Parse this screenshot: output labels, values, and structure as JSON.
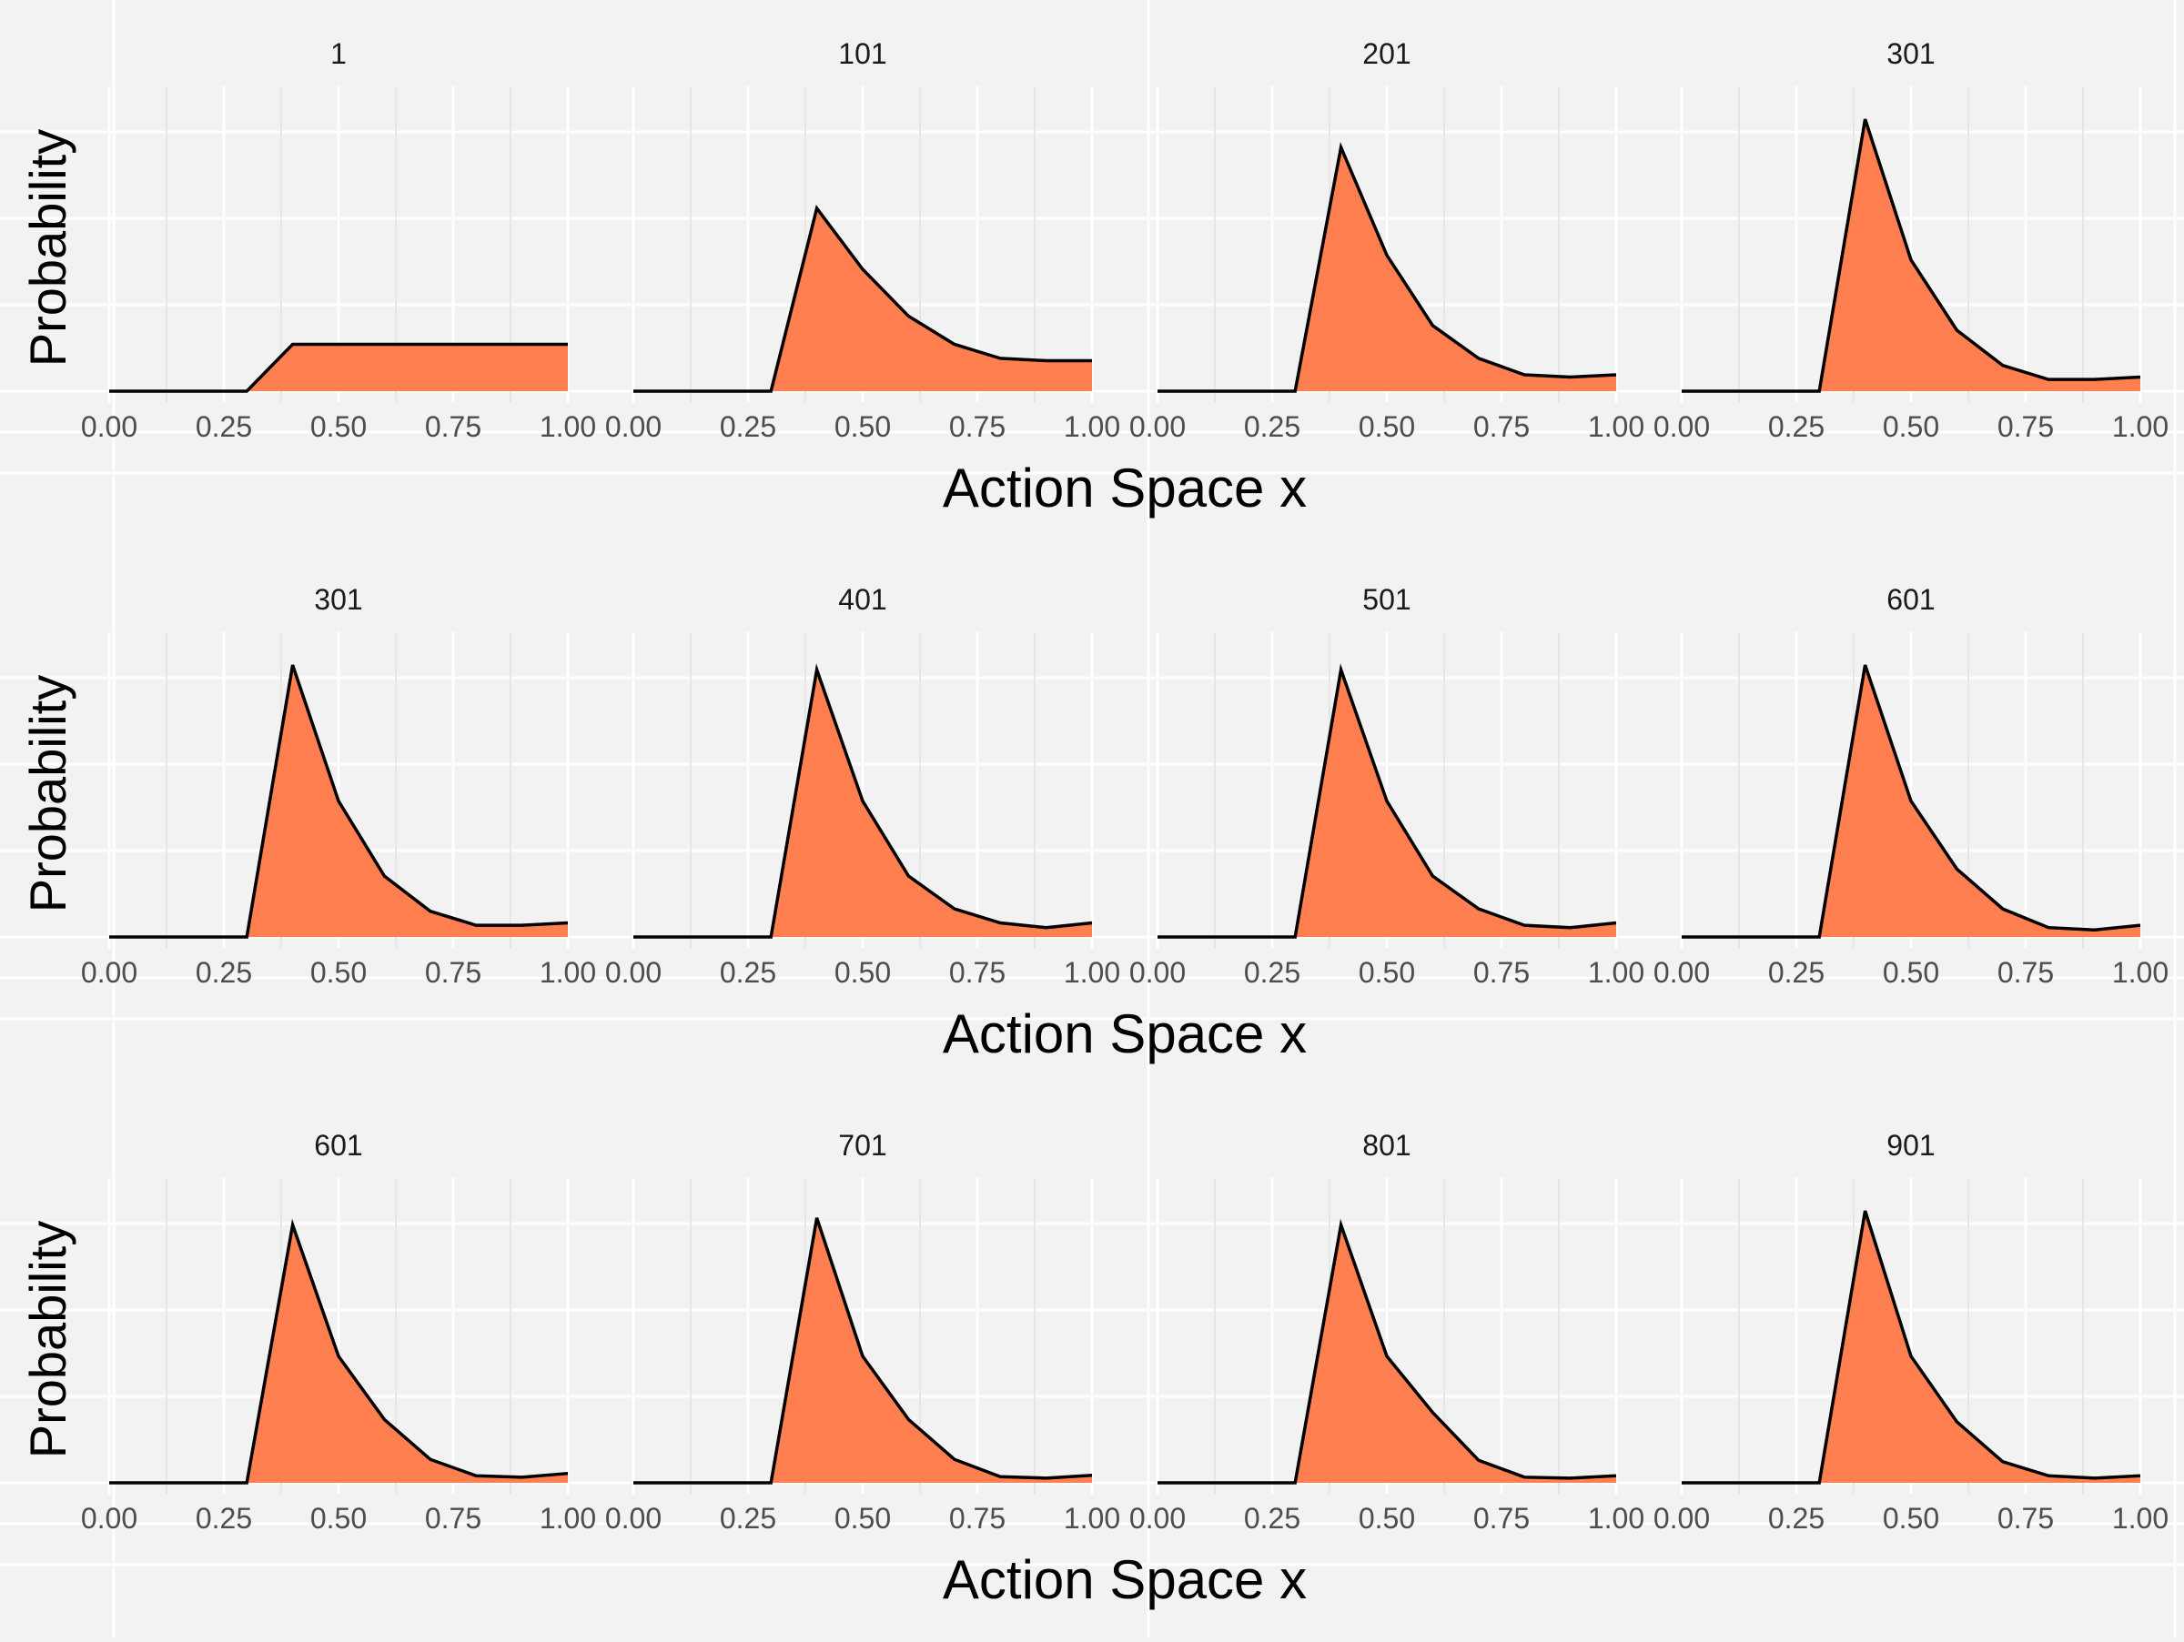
{
  "colors": {
    "background": "#f2f2f2",
    "fill": "#ff7f50",
    "line": "#000000",
    "grid_major": "#ffffff",
    "grid_minor": "#e6e6e6",
    "tick_text": "#4d4d4d",
    "title_text": "#1a1a1a"
  },
  "chart_data": {
    "type": "area",
    "xlabel": "Action Space x",
    "ylabel": "Probability",
    "xlim": [
      0,
      1
    ],
    "ylim": [
      0,
      0.65
    ],
    "x_ticks": [
      "0.00",
      "0.25",
      "0.50",
      "0.75",
      "1.00"
    ],
    "grid": true,
    "x": [
      0,
      0.1,
      0.2,
      0.3,
      0.4,
      0.5,
      0.6,
      0.7,
      0.8,
      0.9,
      1.0
    ],
    "rows": [
      {
        "panels": [
          {
            "title": "1",
            "values": [
              0,
              0,
              0,
              0,
              0.1,
              0.1,
              0.1,
              0.1,
              0.1,
              0.1,
              0.1
            ]
          },
          {
            "title": "101",
            "values": [
              0,
              0,
              0,
              0,
              0.39,
              0.26,
              0.16,
              0.1,
              0.07,
              0.065,
              0.065
            ]
          },
          {
            "title": "201",
            "values": [
              0,
              0,
              0,
              0,
              0.52,
              0.29,
              0.14,
              0.07,
              0.035,
              0.03,
              0.035
            ]
          },
          {
            "title": "301",
            "values": [
              0,
              0,
              0,
              0,
              0.58,
              0.28,
              0.13,
              0.055,
              0.025,
              0.025,
              0.03
            ]
          }
        ]
      },
      {
        "panels": [
          {
            "title": "301",
            "values": [
              0,
              0,
              0,
              0,
              0.58,
              0.29,
              0.13,
              0.055,
              0.025,
              0.025,
              0.03
            ]
          },
          {
            "title": "401",
            "values": [
              0,
              0,
              0,
              0,
              0.57,
              0.29,
              0.13,
              0.06,
              0.03,
              0.02,
              0.03
            ]
          },
          {
            "title": "501",
            "values": [
              0,
              0,
              0,
              0,
              0.57,
              0.29,
              0.13,
              0.06,
              0.025,
              0.02,
              0.03
            ]
          },
          {
            "title": "601",
            "values": [
              0,
              0,
              0,
              0,
              0.58,
              0.29,
              0.145,
              0.06,
              0.02,
              0.015,
              0.025
            ]
          }
        ]
      },
      {
        "panels": [
          {
            "title": "601",
            "values": [
              0,
              0,
              0,
              0,
              0.55,
              0.27,
              0.135,
              0.05,
              0.015,
              0.012,
              0.02
            ]
          },
          {
            "title": "701",
            "values": [
              0,
              0,
              0,
              0,
              0.565,
              0.27,
              0.135,
              0.05,
              0.013,
              0.01,
              0.016
            ]
          },
          {
            "title": "801",
            "values": [
              0,
              0,
              0,
              0,
              0.55,
              0.27,
              0.15,
              0.048,
              0.012,
              0.01,
              0.015
            ]
          },
          {
            "title": "901",
            "values": [
              0,
              0,
              0,
              0,
              0.58,
              0.27,
              0.13,
              0.045,
              0.015,
              0.01,
              0.015
            ]
          }
        ]
      }
    ]
  }
}
